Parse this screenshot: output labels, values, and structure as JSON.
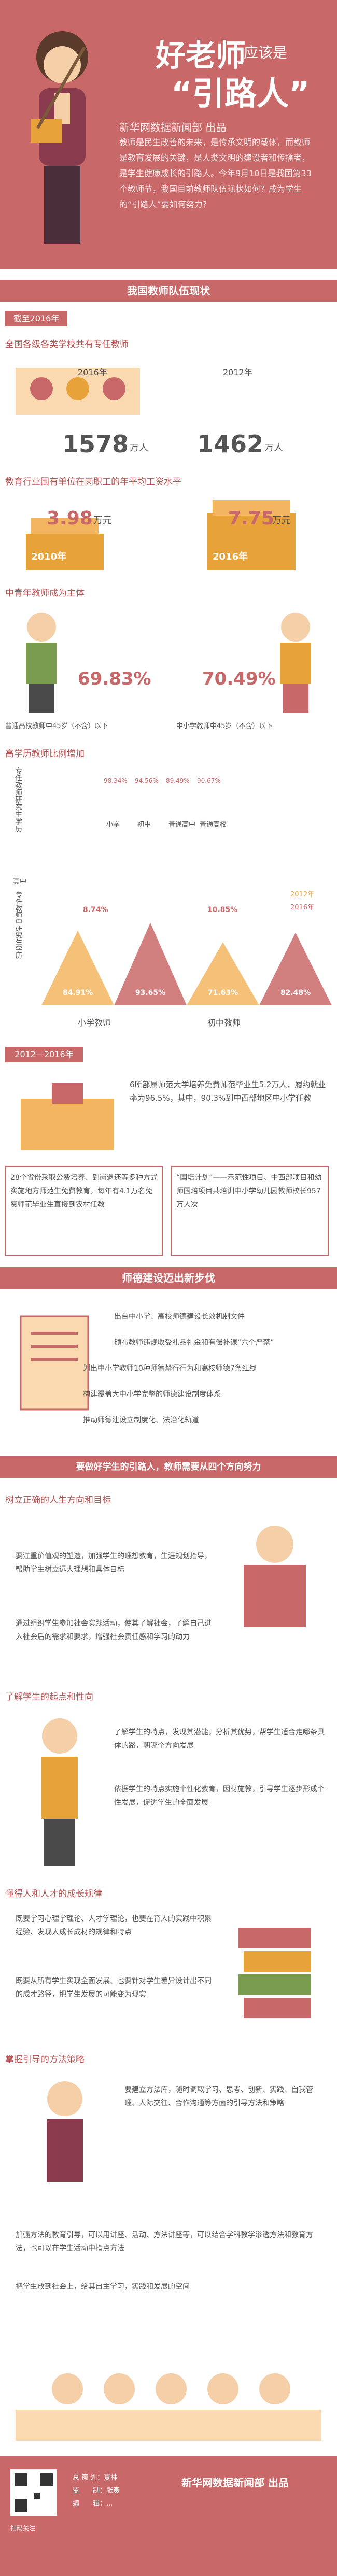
{
  "header": {
    "title_main": "好老师",
    "title_small": "应该是",
    "title_quote": "“引路人”",
    "subtitle": "新华网数据新闻部 出品",
    "intro": "教师是民生改善的未来，是传承文明的载体，而教师是教育发展的关键，是人类文明的建设者和传播者，是学生健康成长的引路人。今年9月10日是我国第33个教师节，我国目前教师队伍现状如何？成为学生的“引路人”要如何努力？"
  },
  "section1": {
    "title": "我国教师队伍现状",
    "tag": "截至2016年",
    "q1": "全国各级各类学校共有专任教师",
    "v2016": "1578",
    "u2016": "万人",
    "y2016": "2016年",
    "v2012": "1462",
    "u2012": "万人",
    "y2012": "2012年",
    "q2": "教育行业国有单位在岗职工的年平均工资水平",
    "s2010": "3.98",
    "s2010u": "万元",
    "s2010y": "2010年",
    "s2016": "7.75",
    "s2016u": "万元",
    "s2016y": "2016年",
    "q3": "中青年教师成为主体",
    "p1": "69.83%",
    "p1l": "普通高校教师中45岁（不含）以下",
    "p2": "70.49%",
    "p2l": "中小学教师中45岁（不含）以下",
    "q4": "高学历教师比例增加",
    "h_label": "专任教师研究生学历",
    "bars_top": [
      {
        "pct": "98.34%",
        "lbl": "小学"
      },
      {
        "pct": "94.56%",
        "lbl": "初中"
      },
      {
        "pct": "89.49%",
        "lbl": "普通高中"
      },
      {
        "pct": "90.67%",
        "lbl": "普通高校"
      }
    ],
    "b_label": "其中",
    "b_label2": "专任教师中研究生学历",
    "legend_2012": "2012年",
    "legend_2016": "2016年",
    "tri": [
      {
        "v": "84.91%",
        "c": "#f3b560"
      },
      {
        "v": "93.65%",
        "c": "#c96868"
      },
      {
        "v": "71.63%",
        "c": "#f3b560"
      },
      {
        "v": "82.48%",
        "c": "#c96868"
      }
    ],
    "d1": "8.74%",
    "d2": "10.85%",
    "grp1": "小学教师",
    "grp2": "初中教师"
  },
  "section2": {
    "tag": "2012—2016年",
    "p1": "6所部属师范大学培养免费师范毕业生5.2万人，履约就业率为96.5%，其中，90.3%到中西部地区中小学任教",
    "p2": "28个省份采取公费培养、到岗退还等多种方式实施地方师范生免费教育，每年有4.1万名免费师范毕业生直接到农村任教",
    "p3": "“国培计划”——示范性项目、中西部项目和幼师国培项目共培训中小学幼儿园教师校长957万人次"
  },
  "section3": {
    "title": "师德建设迈出新步伐",
    "items": [
      "出台中小学、高校师德建设长效机制文件",
      "颁布教师违规收受礼品礼金和有偿补课“六个严禁”",
      "划出中小学教师10种师德禁行行为和高校师德7条红线",
      "构建覆盖大中小学完整的师德建设制度体系",
      "推动师德建设立制度化、法治化轨道"
    ]
  },
  "section4": {
    "title": "要做好学生的引路人，教师需要从四个方向努力",
    "s1": "树立正确的人生方向和目标",
    "s1b1": "要注重价值观的塑造，加强学生的理想教育，生涯规划指导，帮助学生树立远大理想和具体目标",
    "s1b2": "通过组织学生参加社会实践活动，使其了解社会，了解自己进入社会后的需求和要求，增强社会责任感和学习的动力",
    "s2": "了解学生的起点和性向",
    "s2b1": "了解学生的特点，发现其潜能，分析其优势，帮学生适合走哪条具体的路，朝哪个方向发展",
    "s2b2": "依据学生的特点实施个性化教育，因材施教，引导学生逐步形成个性发展，促进学生的全面发展",
    "s3": "懂得人和人才的成长规律",
    "s3b1": "既要学习心理学理论、人才学理论，也要在育人的实践中积累经验、发现人成长成材的规律和特点",
    "s3b2": "既要从所有学生实现全面发展、也要针对学生差异设计出不同的成才路径，把学生发展的可能变为现实",
    "s4": "掌握引导的方法策略",
    "s4b1": "要建立方法库，随时调取学习、思考、创新、实践、自我管理、人际交往、合作沟通等方面的引导方法和策略",
    "s4b2": "加强方法的教育引导，可以用讲座、活动、方法讲座等，可以结合学科教学渗透方法和教育方法，也可以在学生活动中指点方法",
    "s4b3": "把学生放到社会上，给其自主学习，实践和发展的空间"
  },
  "footer": {
    "brand": "新华网数据新闻部 出品",
    "l1": "总 策 划：夏林",
    "l2": "监　　制：张寅",
    "l3": "编　　辑：...",
    "qr": "扫码关注"
  }
}
